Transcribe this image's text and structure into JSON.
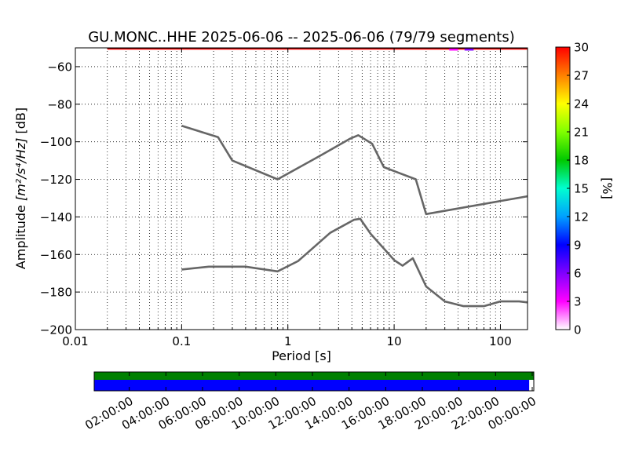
{
  "chart_data": {
    "type": "line",
    "title": "GU.MONC..HHE   2025-06-06 -- 2025-06-06  (79/79 segments)",
    "xlabel": "Period [s]",
    "ylabel_prefix": "Amplitude",
    "ylabel_unit": "m²/s⁴/Hz",
    "ylabel_suffix": "[dB]",
    "xscale": "log",
    "xlim": [
      0.01,
      180
    ],
    "ylim": [
      -200,
      -50
    ],
    "grid": true,
    "x_tick_labels": [
      "0.01",
      "0.1",
      "1",
      "10",
      "100"
    ],
    "y_tick_labels": [
      "−60",
      "−80",
      "−100",
      "−120",
      "−140",
      "−160",
      "−180",
      "−200"
    ],
    "y_ticks": [
      -60,
      -80,
      -100,
      -120,
      -140,
      -160,
      -180,
      -200
    ],
    "series": [
      {
        "color": "#666666",
        "x": [
          0.1,
          0.22,
          0.3,
          0.8,
          2.0,
          3.8,
          4.6,
          6.2,
          8.0,
          16,
          20,
          180
        ],
        "y": [
          -91.5,
          -97.5,
          -110,
          -120,
          -107.5,
          -98.5,
          -96.5,
          -101,
          -113.5,
          -120,
          -138.5,
          -129
        ]
      },
      {
        "color": "#666666",
        "x": [
          0.1,
          0.18,
          0.4,
          0.8,
          1.25,
          2.5,
          4.2,
          4.8,
          6.0,
          10,
          12,
          15,
          20,
          30,
          45,
          70,
          100,
          150,
          180
        ],
        "y": [
          -168,
          -166.5,
          -166.5,
          -169,
          -163.5,
          -148.5,
          -141.5,
          -141,
          -149,
          -163,
          -166,
          -162,
          -177,
          -185,
          -187.5,
          -187.5,
          -185,
          -185,
          -185.5
        ]
      }
    ],
    "top_strip": [
      {
        "color": "#000000",
        "x": [
          0.02,
          180
        ]
      },
      {
        "color": "#ff0000",
        "x": [
          0.02,
          180
        ]
      },
      {
        "color": "#ff00ff",
        "x": [
          33,
          40
        ]
      },
      {
        "color": "#8000ff",
        "x": [
          46,
          56
        ]
      }
    ],
    "colorbar": {
      "label": "[%]",
      "tick_labels": [
        "0",
        "3",
        "6",
        "9",
        "12",
        "15",
        "18",
        "21",
        "24",
        "27",
        "30"
      ],
      "colors": [
        "#ffffff",
        "#ff00ff",
        "#8000ff",
        "#0000ff",
        "#00a0ff",
        "#00ffd0",
        "#00c800",
        "#80ff00",
        "#ffff00",
        "#ff8000",
        "#ff0000"
      ]
    },
    "coverage": {
      "time_labels": [
        "02:00:00",
        "04:00:00",
        "06:00:00",
        "08:00:00",
        "10:00:00",
        "12:00:00",
        "14:00:00",
        "16:00:00",
        "18:00:00",
        "20:00:00",
        "22:00:00",
        "00:00:00"
      ],
      "data_color": "#0000ff",
      "processed_color": "#008000",
      "data_fraction": 0.9895,
      "processed_fraction": 1.0
    }
  }
}
